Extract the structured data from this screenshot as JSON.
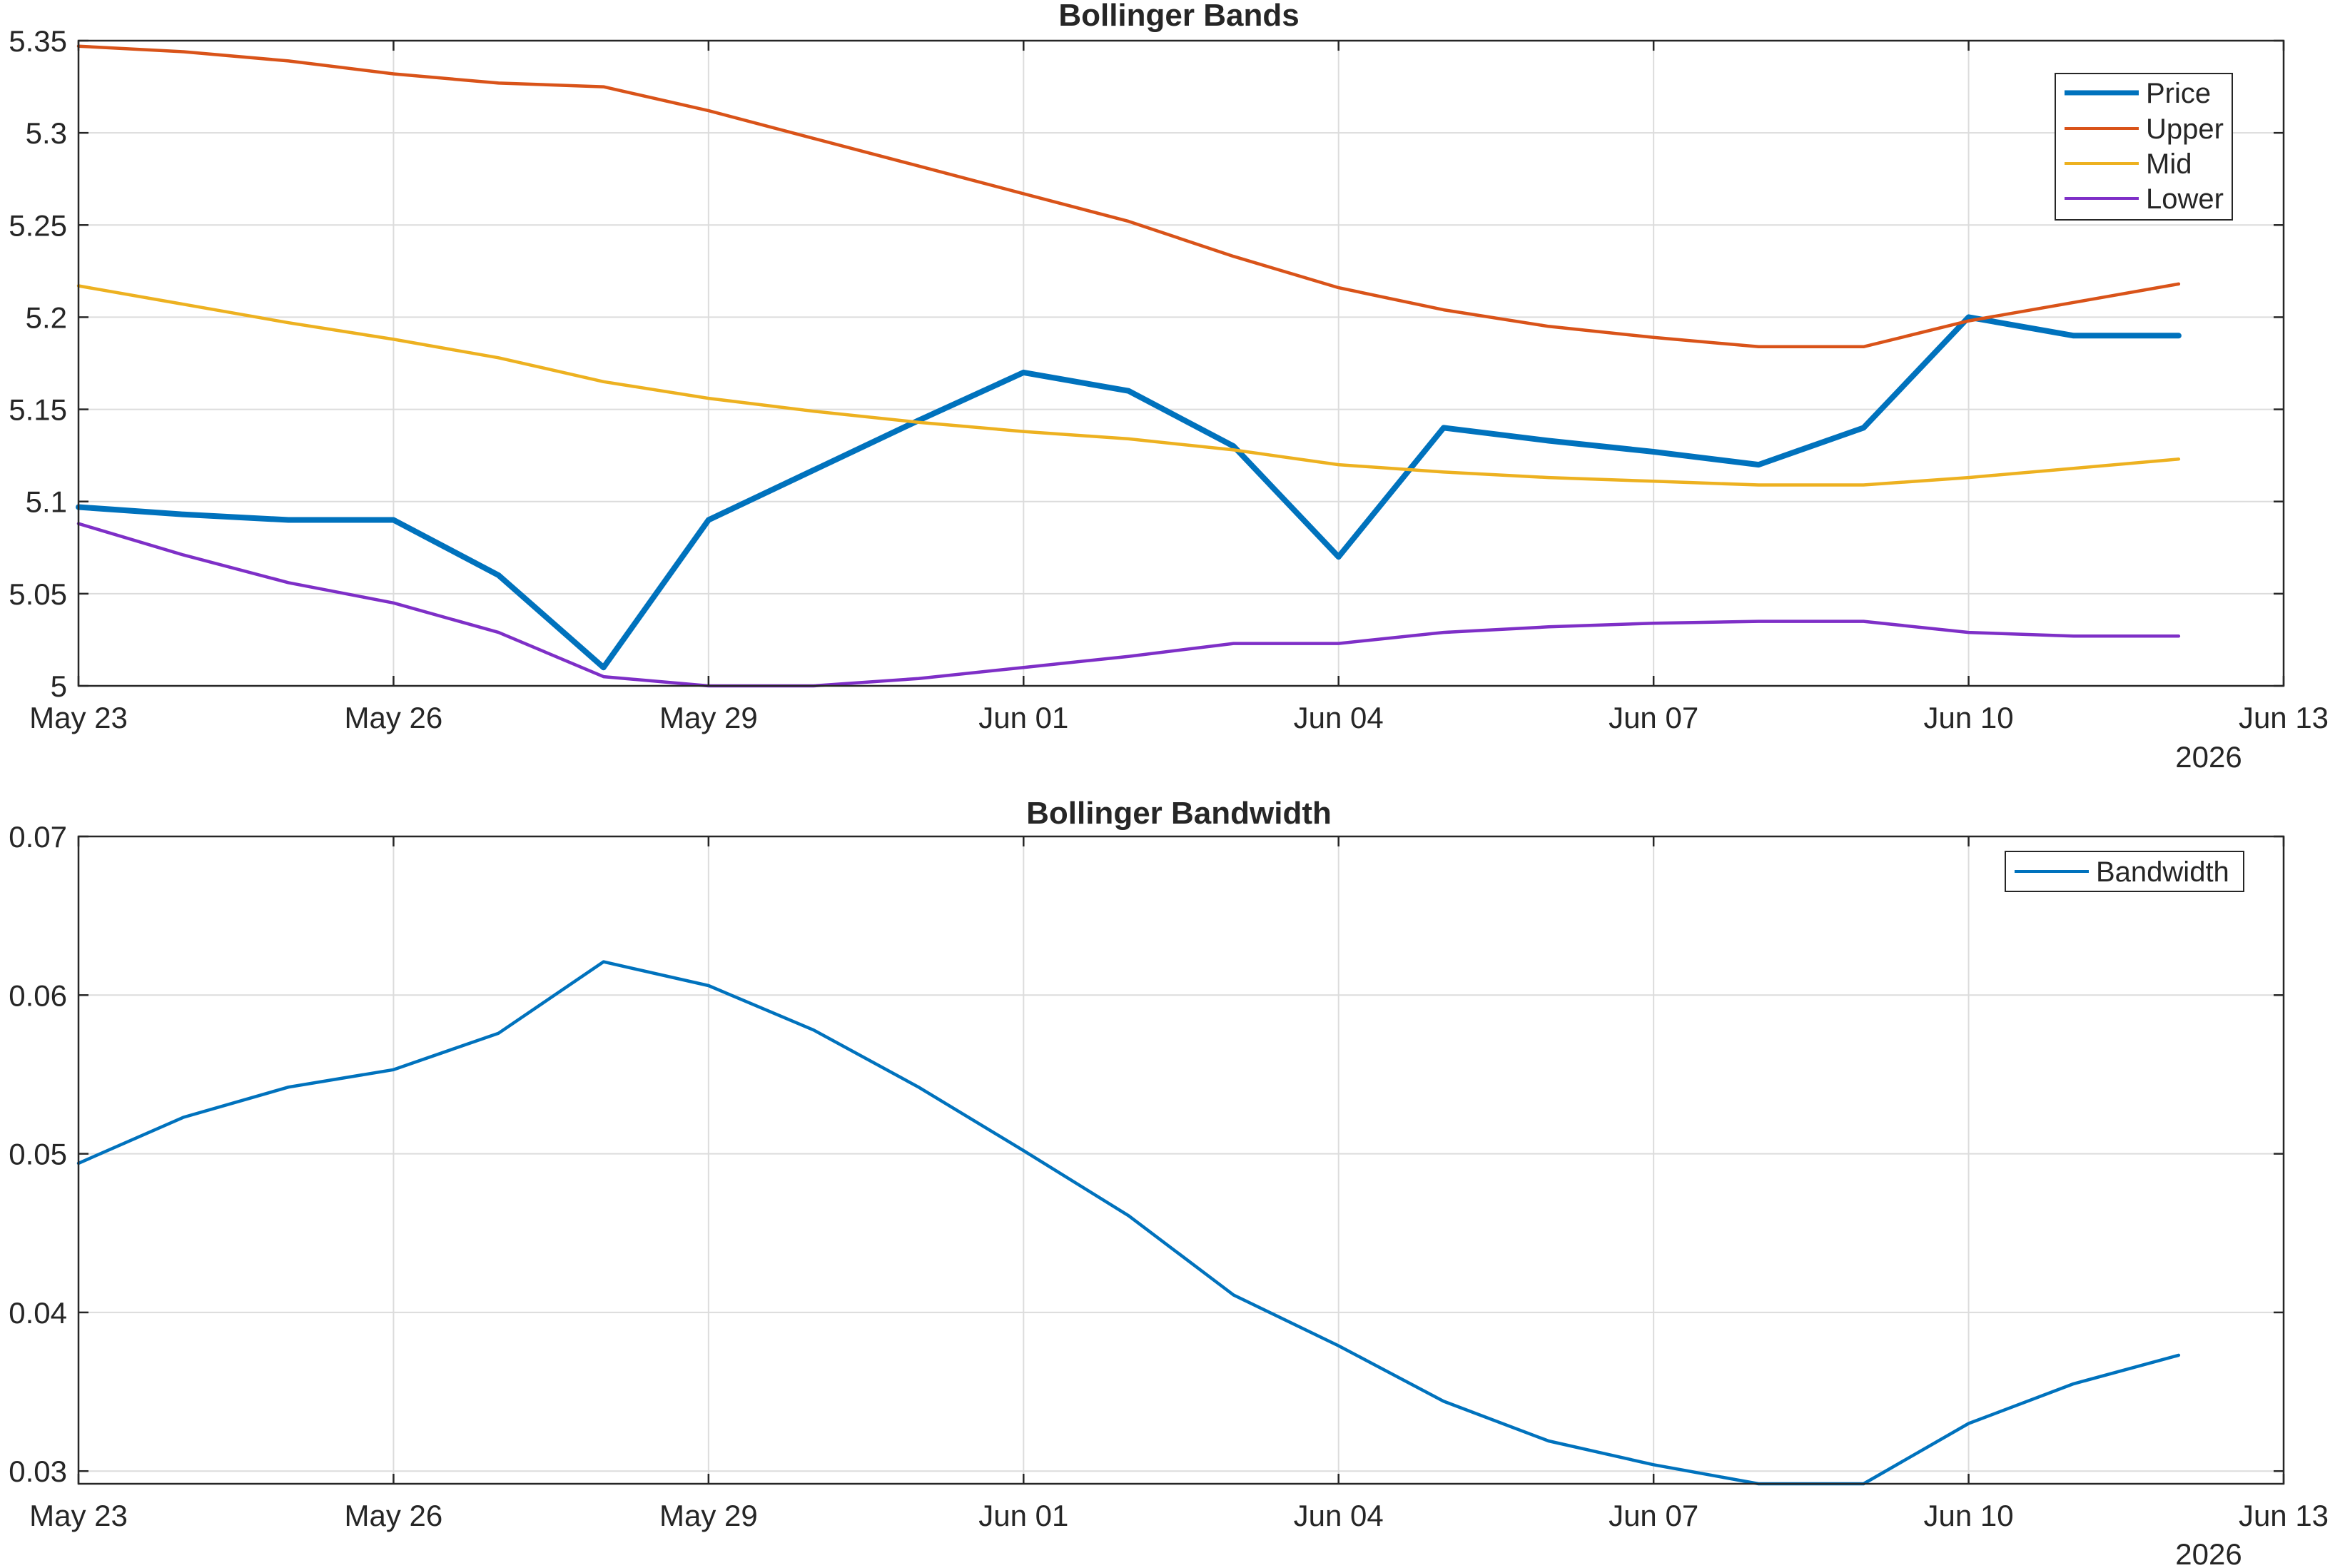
{
  "colors": {
    "price": "#0072BD",
    "upper": "#D95319",
    "mid": "#EDB120",
    "lower": "#7E2FC7",
    "bandwidth": "#0072BD"
  },
  "chart_data": [
    {
      "type": "line",
      "title": "Bollinger Bands",
      "x": [
        "May 23",
        "May 24",
        "May 25",
        "May 26",
        "May 27",
        "May 28",
        "May 29",
        "May 30",
        "May 31",
        "Jun 01",
        "Jun 02",
        "Jun 03",
        "Jun 04",
        "Jun 05",
        "Jun 06",
        "Jun 07",
        "Jun 08",
        "Jun 09",
        "Jun 10",
        "Jun 11",
        "Jun 12"
      ],
      "x_ticks": [
        "May 23",
        "May 26",
        "May 29",
        "Jun 01",
        "Jun 04",
        "Jun 07",
        "Jun 10",
        "Jun 13"
      ],
      "x_secondary_label": "2026",
      "ylim": [
        5,
        5.35
      ],
      "y_ticks": [
        "5",
        "5.05",
        "5.1",
        "5.15",
        "5.2",
        "5.25",
        "5.3",
        "5.35"
      ],
      "y_tick_values": [
        5,
        5.05,
        5.1,
        5.15,
        5.2,
        5.25,
        5.3,
        5.35
      ],
      "grid": true,
      "legend_position": "top-right",
      "series": [
        {
          "name": "Price",
          "color_key": "price",
          "width": "thick",
          "values": [
            5.097,
            5.093,
            5.09,
            5.09,
            5.06,
            5.01,
            5.09,
            5.117,
            5.144,
            5.17,
            5.16,
            5.13,
            5.07,
            5.14,
            5.133,
            5.127,
            5.12,
            5.14,
            5.2,
            5.19,
            5.19
          ]
        },
        {
          "name": "Upper",
          "color_key": "upper",
          "width": "normal",
          "values": [
            5.347,
            5.344,
            5.339,
            5.332,
            5.327,
            5.325,
            5.312,
            5.297,
            5.282,
            5.267,
            5.252,
            5.233,
            5.216,
            5.204,
            5.195,
            5.189,
            5.184,
            5.184,
            5.198,
            5.208,
            5.218
          ]
        },
        {
          "name": "Mid",
          "color_key": "mid",
          "width": "normal",
          "values": [
            5.217,
            5.207,
            5.197,
            5.188,
            5.178,
            5.165,
            5.156,
            5.149,
            5.143,
            5.138,
            5.134,
            5.128,
            5.12,
            5.116,
            5.113,
            5.111,
            5.109,
            5.109,
            5.113,
            5.118,
            5.123
          ]
        },
        {
          "name": "Lower",
          "color_key": "lower",
          "width": "normal",
          "values": [
            5.088,
            5.071,
            5.056,
            5.045,
            5.029,
            5.005,
            5.0,
            5.0,
            5.004,
            5.01,
            5.016,
            5.023,
            5.023,
            5.029,
            5.032,
            5.034,
            5.035,
            5.035,
            5.029,
            5.027,
            5.027
          ]
        }
      ]
    },
    {
      "type": "line",
      "title": "Bollinger Bandwidth",
      "x": [
        "May 23",
        "May 24",
        "May 25",
        "May 26",
        "May 27",
        "May 28",
        "May 29",
        "May 30",
        "May 31",
        "Jun 01",
        "Jun 02",
        "Jun 03",
        "Jun 04",
        "Jun 05",
        "Jun 06",
        "Jun 07",
        "Jun 08",
        "Jun 09",
        "Jun 10",
        "Jun 11",
        "Jun 12"
      ],
      "x_ticks": [
        "May 23",
        "May 26",
        "May 29",
        "Jun 01",
        "Jun 04",
        "Jun 07",
        "Jun 10",
        "Jun 13"
      ],
      "x_secondary_label": "2026",
      "ylim": [
        0.0292,
        0.07
      ],
      "y_ticks": [
        "0.03",
        "0.04",
        "0.05",
        "0.06",
        "0.07"
      ],
      "y_tick_values": [
        0.03,
        0.04,
        0.05,
        0.06,
        0.07
      ],
      "grid": true,
      "legend_position": "top-right",
      "series": [
        {
          "name": "Bandwidth",
          "color_key": "bandwidth",
          "width": "normal",
          "values": [
            0.0494,
            0.0523,
            0.0542,
            0.0553,
            0.0576,
            0.0621,
            0.0606,
            0.0578,
            0.0542,
            0.0502,
            0.0461,
            0.0411,
            0.0379,
            0.0344,
            0.0319,
            0.0304,
            0.0292,
            0.0292,
            0.033,
            0.0355,
            0.0373
          ]
        }
      ]
    }
  ]
}
